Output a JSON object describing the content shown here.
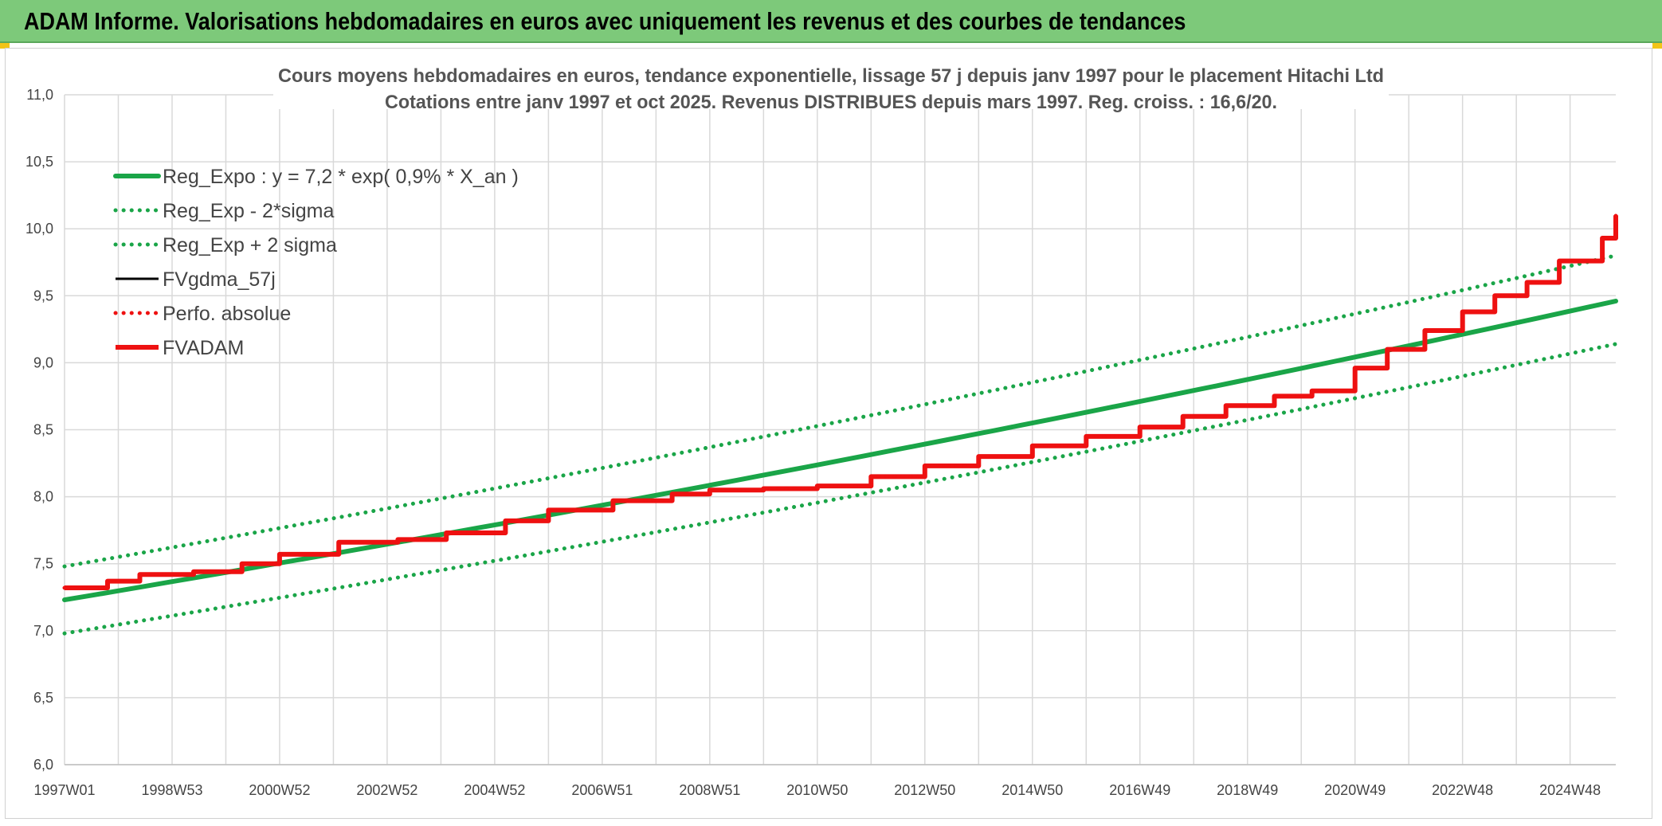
{
  "banner": {
    "title": "ADAM Informe. Valorisations hebdomadaires en euros avec uniquement les revenus et des courbes de tendances"
  },
  "colors": {
    "banner": "#7dc97a",
    "regression": "#1aa548",
    "fvgdma": "#000000",
    "fvadam": "#ee1111",
    "perfo": "#ee1111"
  },
  "chart_data": {
    "type": "line",
    "title": "Cours moyens hebdomadaires en euros, tendance exponentielle, lissage 57 j depuis janv 1997 pour le placement Hitachi Ltd",
    "subtitle": "Cotations entre janv 1997 et oct 2025. Revenus DISTRIBUES depuis mars 1997. Reg. croiss. : 16,6/20.",
    "xlabel": "",
    "ylabel": "",
    "ylim": [
      6.0,
      11.0
    ],
    "y_ticks": [
      "6,0",
      "6,5",
      "7,0",
      "7,5",
      "8,0",
      "8,5",
      "9,0",
      "9,5",
      "10,0",
      "10,5",
      "11,0"
    ],
    "x_range": [
      1997.0,
      2025.85
    ],
    "x_ticks": [
      {
        "label": "1997W01",
        "x": 1997.0
      },
      {
        "label": "1998W53",
        "x": 1999.0
      },
      {
        "label": "2000W52",
        "x": 2001.0
      },
      {
        "label": "2002W52",
        "x": 2003.0
      },
      {
        "label": "2004W52",
        "x": 2005.0
      },
      {
        "label": "2006W51",
        "x": 2007.0
      },
      {
        "label": "2008W51",
        "x": 2009.0
      },
      {
        "label": "2010W50",
        "x": 2011.0
      },
      {
        "label": "2012W50",
        "x": 2013.0
      },
      {
        "label": "2014W50",
        "x": 2015.0
      },
      {
        "label": "2016W49",
        "x": 2017.0
      },
      {
        "label": "2018W49",
        "x": 2019.0
      },
      {
        "label": "2020W49",
        "x": 2021.0
      },
      {
        "label": "2022W48",
        "x": 2023.0
      },
      {
        "label": "2024W48",
        "x": 2025.0
      }
    ],
    "grid": true,
    "legend_position": "top-left",
    "series": [
      {
        "name": "Reg_Expo : y = 7,2 * exp( 0,9% *  X_an )",
        "style": "solid-thick",
        "color": "#1aa548",
        "x": [
          1997.0,
          2025.85
        ],
        "y": [
          7.23,
          9.46
        ],
        "curve": "exponential"
      },
      {
        "name": "Reg_Exp - 2*sigma",
        "style": "dotted",
        "color": "#1aa548",
        "x": [
          1997.0,
          2025.85
        ],
        "y": [
          6.98,
          9.14
        ],
        "curve": "exponential"
      },
      {
        "name": "Reg_Exp + 2 sigma",
        "style": "dotted",
        "color": "#1aa548",
        "x": [
          1997.0,
          2025.85
        ],
        "y": [
          7.48,
          9.8
        ],
        "curve": "exponential"
      },
      {
        "name": "FVgdma_57j",
        "style": "solid",
        "color": "#000000",
        "x": [
          1997.0,
          1997.8,
          1998.4,
          1999.4,
          2000.3,
          2001.0,
          2002.1,
          2003.2,
          2004.1,
          2005.2,
          2006.0,
          2007.2,
          2008.3,
          2009.0,
          2010.0,
          2011.0,
          2012.0,
          2013.0,
          2014.0,
          2015.0,
          2016.0,
          2017.0,
          2017.8,
          2018.6,
          2019.5,
          2020.2,
          2021.0,
          2021.6,
          2022.3,
          2023.0,
          2023.6,
          2024.2,
          2024.8,
          2025.6,
          2025.85
        ],
        "y": [
          7.32,
          7.37,
          7.42,
          7.44,
          7.5,
          7.57,
          7.66,
          7.68,
          7.73,
          7.82,
          7.9,
          7.97,
          8.02,
          8.05,
          8.06,
          8.08,
          8.15,
          8.23,
          8.3,
          8.38,
          8.45,
          8.52,
          8.6,
          8.68,
          8.75,
          8.79,
          8.96,
          9.1,
          9.24,
          9.38,
          9.5,
          9.6,
          9.76,
          9.93,
          10.1
        ]
      },
      {
        "name": "Perfo. absolue",
        "style": "dotted",
        "color": "#ee1111",
        "x": [
          1997.0,
          1997.8,
          1998.4,
          1999.4,
          2000.3,
          2001.0,
          2002.1,
          2003.2,
          2004.1,
          2005.2,
          2006.0,
          2007.2,
          2008.3,
          2009.0,
          2010.0,
          2011.0,
          2012.0,
          2013.0,
          2014.0,
          2015.0,
          2016.0,
          2017.0,
          2017.8,
          2018.6,
          2019.5,
          2020.2,
          2021.0,
          2021.6,
          2022.3,
          2023.0,
          2023.6,
          2024.2,
          2024.8,
          2025.6,
          2025.85
        ],
        "y": [
          7.32,
          7.37,
          7.42,
          7.44,
          7.5,
          7.57,
          7.66,
          7.68,
          7.73,
          7.82,
          7.9,
          7.97,
          8.02,
          8.05,
          8.06,
          8.08,
          8.15,
          8.23,
          8.3,
          8.38,
          8.45,
          8.52,
          8.6,
          8.68,
          8.75,
          8.79,
          8.96,
          9.1,
          9.24,
          9.38,
          9.5,
          9.6,
          9.76,
          9.93,
          10.1
        ]
      },
      {
        "name": "FVADAM",
        "style": "solid-thick",
        "color": "#ee1111",
        "x": [
          1997.0,
          1997.8,
          1998.4,
          1999.4,
          2000.3,
          2001.0,
          2002.1,
          2003.2,
          2004.1,
          2005.2,
          2006.0,
          2007.2,
          2008.3,
          2009.0,
          2010.0,
          2011.0,
          2012.0,
          2013.0,
          2014.0,
          2015.0,
          2016.0,
          2017.0,
          2017.8,
          2018.6,
          2019.5,
          2020.2,
          2021.0,
          2021.6,
          2022.3,
          2023.0,
          2023.6,
          2024.2,
          2024.8,
          2025.6,
          2025.85
        ],
        "y": [
          7.32,
          7.37,
          7.42,
          7.44,
          7.5,
          7.57,
          7.66,
          7.68,
          7.73,
          7.82,
          7.9,
          7.97,
          8.02,
          8.05,
          8.06,
          8.08,
          8.15,
          8.23,
          8.3,
          8.38,
          8.45,
          8.52,
          8.6,
          8.68,
          8.75,
          8.79,
          8.96,
          9.1,
          9.24,
          9.38,
          9.5,
          9.6,
          9.76,
          9.93,
          10.1
        ]
      }
    ]
  }
}
